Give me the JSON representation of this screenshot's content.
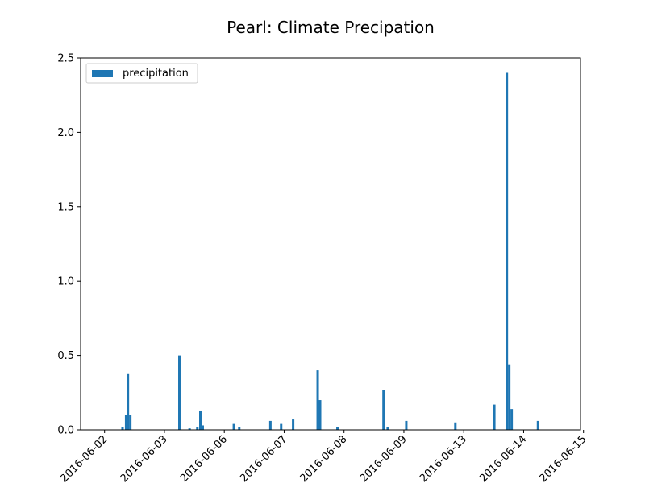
{
  "chart_data": {
    "type": "bar",
    "title": "Pearl: Climate Precipation",
    "xlabel": "",
    "ylabel": "",
    "ylim": [
      0,
      2.5
    ],
    "yticks": [
      "0.0",
      "0.5",
      "1.0",
      "1.5",
      "2.0",
      "2.5"
    ],
    "xlim": [
      -0.4,
      7.95
    ],
    "xtick_labels": [
      "2016-06-02",
      "2016-06-03",
      "2016-06-06",
      "2016-06-07",
      "2016-06-08",
      "2016-06-09",
      "2016-06-13",
      "2016-06-14",
      "2016-06-15"
    ],
    "legend": {
      "position": "top-left",
      "labels": [
        "precipitation"
      ]
    },
    "bar_color": "#1f77b4",
    "series": [
      {
        "name": "precipitation",
        "x": [
          0.3,
          0.36,
          0.39,
          0.43,
          1.25,
          1.42,
          1.55,
          1.6,
          1.64,
          2.16,
          2.25,
          2.77,
          2.95,
          3.15,
          3.56,
          3.6,
          3.89,
          4.66,
          4.73,
          5.04,
          5.86,
          6.51,
          6.72,
          6.76,
          6.8,
          7.24
        ],
        "values": [
          0.02,
          0.1,
          0.38,
          0.1,
          0.5,
          0.01,
          0.02,
          0.13,
          0.03,
          0.04,
          0.02,
          0.06,
          0.04,
          0.07,
          0.4,
          0.2,
          0.02,
          0.27,
          0.02,
          0.06,
          0.05,
          0.17,
          2.4,
          0.44,
          0.14,
          0.06
        ]
      }
    ]
  }
}
